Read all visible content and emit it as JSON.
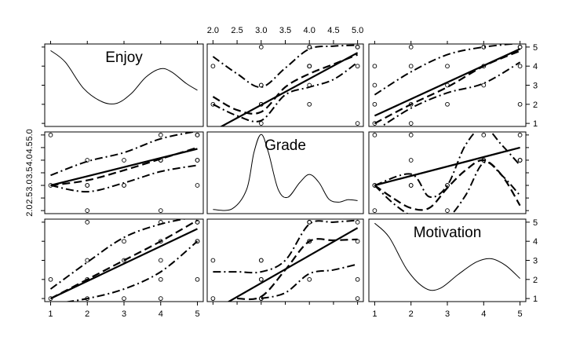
{
  "chart_data": {
    "type": "scatter",
    "variables": [
      "Enjoy",
      "Grade",
      "Motivation"
    ],
    "observations": [
      {
        "Enjoy": 1,
        "Grade": 3,
        "Motivation": 1
      },
      {
        "Enjoy": 1,
        "Grade": 5,
        "Motivation": 2
      },
      {
        "Enjoy": 2,
        "Grade": 2,
        "Motivation": 1
      },
      {
        "Enjoy": 2,
        "Grade": 3,
        "Motivation": 2
      },
      {
        "Enjoy": 2,
        "Grade": 3,
        "Motivation": 3
      },
      {
        "Enjoy": 2,
        "Grade": 4,
        "Motivation": 5
      },
      {
        "Enjoy": 3,
        "Grade": 3,
        "Motivation": 1
      },
      {
        "Enjoy": 3,
        "Grade": 3,
        "Motivation": 3
      },
      {
        "Enjoy": 3,
        "Grade": 4,
        "Motivation": 4
      },
      {
        "Enjoy": 4,
        "Grade": 2,
        "Motivation": 3
      },
      {
        "Enjoy": 4,
        "Grade": 4,
        "Motivation": 2
      },
      {
        "Enjoy": 4,
        "Grade": 4,
        "Motivation": 4
      },
      {
        "Enjoy": 4,
        "Grade": 4,
        "Motivation": 5
      },
      {
        "Enjoy": 4,
        "Grade": 5,
        "Motivation": 1
      },
      {
        "Enjoy": 5,
        "Grade": 3,
        "Motivation": 2
      },
      {
        "Enjoy": 5,
        "Grade": 4,
        "Motivation": 4
      },
      {
        "Enjoy": 5,
        "Grade": 4,
        "Motivation": 5
      },
      {
        "Enjoy": 5,
        "Grade": 5,
        "Motivation": 4
      },
      {
        "Enjoy": 5,
        "Grade": 5,
        "Motivation": 5
      }
    ],
    "axes": {
      "Enjoy": {
        "range": [
          1,
          5
        ],
        "ticks": [
          "1",
          "2",
          "3",
          "4",
          "5"
        ],
        "tick_values": [
          1,
          2,
          3,
          4,
          5
        ]
      },
      "Grade": {
        "range": [
          2,
          5
        ],
        "ticks": [
          "2.0",
          "2.5",
          "3.0",
          "3.5",
          "4.0",
          "4.5",
          "5.0"
        ],
        "tick_values": [
          2,
          2.5,
          3,
          3.5,
          4,
          4.5,
          5
        ]
      },
      "Motivation": {
        "range": [
          1,
          5
        ],
        "ticks": [
          "1",
          "2",
          "3",
          "4",
          "5"
        ],
        "tick_values": [
          1,
          2,
          3,
          4,
          5
        ]
      }
    },
    "panels": [
      {
        "row": "Enjoy",
        "col": "Enjoy",
        "kind": "density",
        "curve": [
          [
            1.0,
            0.92
          ],
          [
            1.4,
            0.78
          ],
          [
            1.9,
            0.46
          ],
          [
            2.4,
            0.3
          ],
          [
            2.8,
            0.28
          ],
          [
            3.2,
            0.4
          ],
          [
            3.6,
            0.6
          ],
          [
            4.0,
            0.7
          ],
          [
            4.3,
            0.66
          ],
          [
            4.7,
            0.52
          ],
          [
            5.0,
            0.44
          ]
        ]
      },
      {
        "row": "Enjoy",
        "col": "Grade",
        "kind": "scatter",
        "x": "Grade",
        "y": "Enjoy",
        "fit": [
          [
            2.0,
            0.6
          ],
          [
            5.0,
            4.7
          ]
        ],
        "smooth": [
          [
            2.0,
            2.4
          ],
          [
            2.5,
            1.7
          ],
          [
            3.0,
            1.6
          ],
          [
            3.5,
            2.9
          ],
          [
            4.0,
            3.6
          ],
          [
            4.5,
            4.1
          ],
          [
            5.0,
            4.6
          ]
        ],
        "upper": [
          [
            2.0,
            4.5
          ],
          [
            2.5,
            3.6
          ],
          [
            3.0,
            2.9
          ],
          [
            3.5,
            3.9
          ],
          [
            4.0,
            4.9
          ],
          [
            4.5,
            5.05
          ],
          [
            5.0,
            5.1
          ]
        ],
        "lower": [
          [
            2.0,
            2.0
          ],
          [
            2.5,
            1.4
          ],
          [
            3.0,
            1.15
          ],
          [
            3.5,
            2.5
          ],
          [
            4.0,
            2.9
          ],
          [
            4.5,
            3.3
          ],
          [
            5.0,
            4.2
          ]
        ]
      },
      {
        "row": "Enjoy",
        "col": "Motivation",
        "kind": "scatter",
        "x": "Motivation",
        "y": "Enjoy",
        "fit": [
          [
            1,
            1.4
          ],
          [
            5,
            4.9
          ]
        ],
        "smooth": [
          [
            1,
            1.0
          ],
          [
            2,
            2.0
          ],
          [
            3,
            2.9
          ],
          [
            4,
            4.0
          ],
          [
            5,
            4.8
          ]
        ],
        "upper": [
          [
            1,
            2.5
          ],
          [
            2,
            3.7
          ],
          [
            3,
            4.6
          ],
          [
            4,
            5.0
          ],
          [
            5,
            5.2
          ]
        ],
        "lower": [
          [
            1,
            0.6
          ],
          [
            2,
            1.8
          ],
          [
            3,
            2.6
          ],
          [
            4,
            3.1
          ],
          [
            5,
            4.2
          ]
        ]
      },
      {
        "row": "Grade",
        "col": "Enjoy",
        "kind": "scatter",
        "x": "Enjoy",
        "y": "Grade",
        "fit": [
          [
            1,
            3.0
          ],
          [
            5,
            4.45
          ]
        ],
        "smooth": [
          [
            1,
            3.0
          ],
          [
            2,
            3.2
          ],
          [
            3,
            3.6
          ],
          [
            4,
            4.05
          ],
          [
            5,
            4.5
          ]
        ],
        "upper": [
          [
            1,
            3.4
          ],
          [
            2,
            3.95
          ],
          [
            3,
            4.3
          ],
          [
            4,
            4.85
          ],
          [
            5,
            5.15
          ]
        ],
        "lower": [
          [
            1,
            3.0
          ],
          [
            2,
            2.75
          ],
          [
            3,
            3.1
          ],
          [
            4,
            3.55
          ],
          [
            5,
            3.8
          ]
        ]
      },
      {
        "row": "Grade",
        "col": "Grade",
        "kind": "density",
        "curve": [
          [
            2.0,
            0.05
          ],
          [
            2.4,
            0.06
          ],
          [
            2.7,
            0.3
          ],
          [
            2.85,
            0.75
          ],
          [
            3.0,
            0.97
          ],
          [
            3.15,
            0.75
          ],
          [
            3.35,
            0.3
          ],
          [
            3.55,
            0.2
          ],
          [
            3.8,
            0.38
          ],
          [
            4.0,
            0.48
          ],
          [
            4.2,
            0.38
          ],
          [
            4.4,
            0.18
          ],
          [
            4.6,
            0.14
          ],
          [
            4.8,
            0.17
          ],
          [
            5.0,
            0.16
          ]
        ]
      },
      {
        "row": "Grade",
        "col": "Motivation",
        "kind": "scatter",
        "x": "Motivation",
        "y": "Grade",
        "fit": [
          [
            1,
            3.0
          ],
          [
            5,
            4.5
          ]
        ],
        "smooth": [
          [
            1,
            3.0
          ],
          [
            1.5,
            2.5
          ],
          [
            2,
            2.1
          ],
          [
            2.5,
            2.1
          ],
          [
            3,
            2.9
          ],
          [
            3.5,
            3.6
          ],
          [
            4,
            4.0
          ],
          [
            4.5,
            3.4
          ],
          [
            5,
            2.2
          ]
        ],
        "upper": [
          [
            1,
            3.0
          ],
          [
            2,
            3.45
          ],
          [
            2.5,
            2.55
          ],
          [
            3,
            3.0
          ],
          [
            3.5,
            4.6
          ],
          [
            4,
            5.3
          ],
          [
            4.5,
            4.6
          ],
          [
            5,
            3.8
          ]
        ],
        "lower": [
          [
            1,
            3.0
          ],
          [
            1.5,
            2.3
          ],
          [
            2,
            1.8
          ],
          [
            2.5,
            1.6
          ],
          [
            3,
            1.7
          ],
          [
            3.5,
            2.6
          ],
          [
            4,
            3.9
          ],
          [
            4.5,
            3.4
          ],
          [
            5,
            2.6
          ]
        ]
      },
      {
        "row": "Motivation",
        "col": "Enjoy",
        "kind": "scatter",
        "x": "Enjoy",
        "y": "Motivation",
        "fit": [
          [
            1,
            1.0
          ],
          [
            5,
            4.65
          ]
        ],
        "smooth": [
          [
            1,
            1.0
          ],
          [
            2,
            2.0
          ],
          [
            3,
            3.0
          ],
          [
            4,
            4.0
          ],
          [
            5,
            5.1
          ]
        ],
        "upper": [
          [
            1,
            1.5
          ],
          [
            2,
            2.9
          ],
          [
            3,
            4.2
          ],
          [
            4,
            4.9
          ],
          [
            5,
            5.3
          ]
        ],
        "lower": [
          [
            1,
            0.7
          ],
          [
            2,
            1.0
          ],
          [
            3,
            1.5
          ],
          [
            4,
            2.4
          ],
          [
            5,
            4.0
          ]
        ]
      },
      {
        "row": "Motivation",
        "col": "Grade",
        "kind": "scatter",
        "x": "Grade",
        "y": "Motivation",
        "fit": [
          [
            2.3,
            0.8
          ],
          [
            5.0,
            4.7
          ]
        ],
        "smooth": [
          [
            2.5,
            1.0
          ],
          [
            3.0,
            1.1
          ],
          [
            3.5,
            2.5
          ],
          [
            4.0,
            4.0
          ],
          [
            4.5,
            4.05
          ],
          [
            5.0,
            4.1
          ]
        ],
        "upper": [
          [
            2.0,
            2.4
          ],
          [
            2.5,
            2.4
          ],
          [
            3.0,
            2.4
          ],
          [
            3.5,
            3.0
          ],
          [
            4.0,
            4.9
          ],
          [
            4.5,
            5.0
          ],
          [
            5.0,
            5.1
          ]
        ],
        "lower": [
          [
            3.0,
            1.0
          ],
          [
            3.5,
            1.3
          ],
          [
            4.0,
            2.3
          ],
          [
            4.5,
            2.5
          ],
          [
            5.0,
            2.8
          ]
        ]
      },
      {
        "row": "Motivation",
        "col": "Motivation",
        "kind": "density",
        "curve": [
          [
            1.0,
            0.95
          ],
          [
            1.4,
            0.78
          ],
          [
            1.9,
            0.38
          ],
          [
            2.4,
            0.16
          ],
          [
            2.8,
            0.16
          ],
          [
            3.3,
            0.33
          ],
          [
            3.8,
            0.48
          ],
          [
            4.2,
            0.52
          ],
          [
            4.6,
            0.44
          ],
          [
            5.0,
            0.28
          ]
        ]
      }
    ]
  }
}
